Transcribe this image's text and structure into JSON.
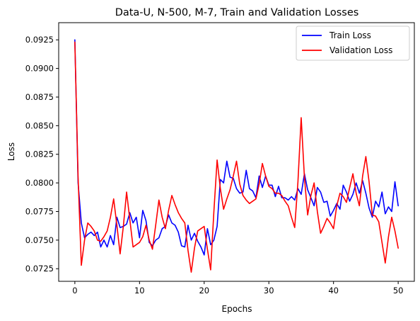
{
  "chart_data": {
    "type": "line",
    "title": "Data-U, N-500, M-7, Train and Validation Losses",
    "xlabel": "Epochs",
    "ylabel": "Loss",
    "xlim": [
      -2.5,
      52.5
    ],
    "ylim": [
      0.0714,
      0.094
    ],
    "xticks": [
      0,
      10,
      20,
      30,
      40,
      50
    ],
    "xtick_labels": [
      "0",
      "10",
      "20",
      "30",
      "40",
      "50"
    ],
    "yticks": [
      0.0725,
      0.075,
      0.0775,
      0.08,
      0.0825,
      0.085,
      0.0875,
      0.09,
      0.0925
    ],
    "ytick_labels": [
      "0.0725",
      "0.0750",
      "0.0775",
      "0.0800",
      "0.0825",
      "0.0850",
      "0.0875",
      "0.0900",
      "0.0925"
    ],
    "grid": false,
    "legend_position": "top-right",
    "x": [
      0,
      0.5,
      1,
      1.5,
      2,
      2.5,
      3,
      3.5,
      4,
      4.5,
      5,
      5.5,
      6,
      6.5,
      7,
      7.5,
      8,
      8.5,
      9,
      9.5,
      10,
      10.5,
      11,
      11.5,
      12,
      12.5,
      13,
      13.5,
      14,
      14.5,
      15,
      15.5,
      16,
      16.5,
      17,
      17.5,
      18,
      18.5,
      19,
      19.5,
      20,
      20.5,
      21,
      21.5,
      22,
      22.5,
      23,
      23.5,
      24,
      24.5,
      25,
      25.5,
      26,
      26.5,
      27,
      27.5,
      28,
      28.5,
      29,
      29.5,
      30,
      30.5,
      31,
      31.5,
      32,
      32.5,
      33,
      33.5,
      34,
      34.5,
      35,
      35.5,
      36,
      36.5,
      37,
      37.5,
      38,
      38.5,
      39,
      39.5,
      40,
      40.5,
      41,
      41.5,
      42,
      42.5,
      43,
      43.5,
      44,
      44.5,
      45,
      45.5,
      46,
      46.5,
      47,
      47.5,
      48,
      48.5,
      49,
      49.5,
      50
    ],
    "series": [
      {
        "name": "Train Loss",
        "color": "#0000ff",
        "values": [
          0.0925,
          0.08,
          0.0765,
          0.0752,
          0.0755,
          0.0757,
          0.0754,
          0.0757,
          0.0744,
          0.075,
          0.0744,
          0.0754,
          0.0746,
          0.077,
          0.0761,
          0.0762,
          0.0764,
          0.0774,
          0.0765,
          0.077,
          0.0752,
          0.0776,
          0.0767,
          0.0748,
          0.0745,
          0.075,
          0.0752,
          0.076,
          0.0762,
          0.0772,
          0.0765,
          0.0763,
          0.0757,
          0.0745,
          0.0744,
          0.0763,
          0.075,
          0.0756,
          0.0749,
          0.0744,
          0.0737,
          0.076,
          0.0746,
          0.075,
          0.0762,
          0.0803,
          0.08,
          0.0819,
          0.0805,
          0.0804,
          0.0795,
          0.0791,
          0.0792,
          0.0811,
          0.0795,
          0.0793,
          0.0787,
          0.0806,
          0.0796,
          0.0806,
          0.0798,
          0.0798,
          0.0788,
          0.0797,
          0.0787,
          0.0787,
          0.0785,
          0.0788,
          0.0785,
          0.0795,
          0.079,
          0.0808,
          0.0794,
          0.0787,
          0.078,
          0.0796,
          0.0792,
          0.0783,
          0.0784,
          0.0771,
          0.0776,
          0.0782,
          0.0777,
          0.0798,
          0.0792,
          0.0784,
          0.079,
          0.08,
          0.0791,
          0.0802,
          0.0791,
          0.0778,
          0.077,
          0.0784,
          0.0779,
          0.0792,
          0.0773,
          0.0779,
          0.0775,
          0.0801,
          0.078
        ]
      },
      {
        "name": "Validation Loss",
        "color": "#ff0000",
        "values": [
          0.0923,
          0.0805,
          0.0728,
          0.075,
          0.0765,
          0.0762,
          0.0758,
          0.075,
          0.0749,
          0.0753,
          0.0758,
          0.077,
          0.0786,
          0.0763,
          0.0738,
          0.0762,
          0.0792,
          0.0768,
          0.0744,
          0.0746,
          0.0748,
          0.0753,
          0.0763,
          0.075,
          0.0742,
          0.0763,
          0.0785,
          0.077,
          0.076,
          0.0776,
          0.0789,
          0.0781,
          0.0774,
          0.0769,
          0.0765,
          0.0741,
          0.0722,
          0.0743,
          0.0758,
          0.076,
          0.0762,
          0.0742,
          0.0724,
          0.0775,
          0.082,
          0.0795,
          0.0777,
          0.0786,
          0.0794,
          0.0806,
          0.0819,
          0.0799,
          0.0789,
          0.0785,
          0.0782,
          0.0784,
          0.0786,
          0.0799,
          0.0817,
          0.0806,
          0.0797,
          0.0795,
          0.0791,
          0.0791,
          0.0789,
          0.0784,
          0.078,
          0.077,
          0.0761,
          0.0801,
          0.0857,
          0.0805,
          0.0772,
          0.0789,
          0.08,
          0.0775,
          0.0756,
          0.0762,
          0.0769,
          0.0765,
          0.076,
          0.078,
          0.0791,
          0.0788,
          0.0783,
          0.0796,
          0.0808,
          0.0791,
          0.078,
          0.0806,
          0.0823,
          0.0801,
          0.0772,
          0.0771,
          0.0766,
          0.0748,
          0.073,
          0.0753,
          0.077,
          0.0758,
          0.0743
        ]
      }
    ]
  }
}
